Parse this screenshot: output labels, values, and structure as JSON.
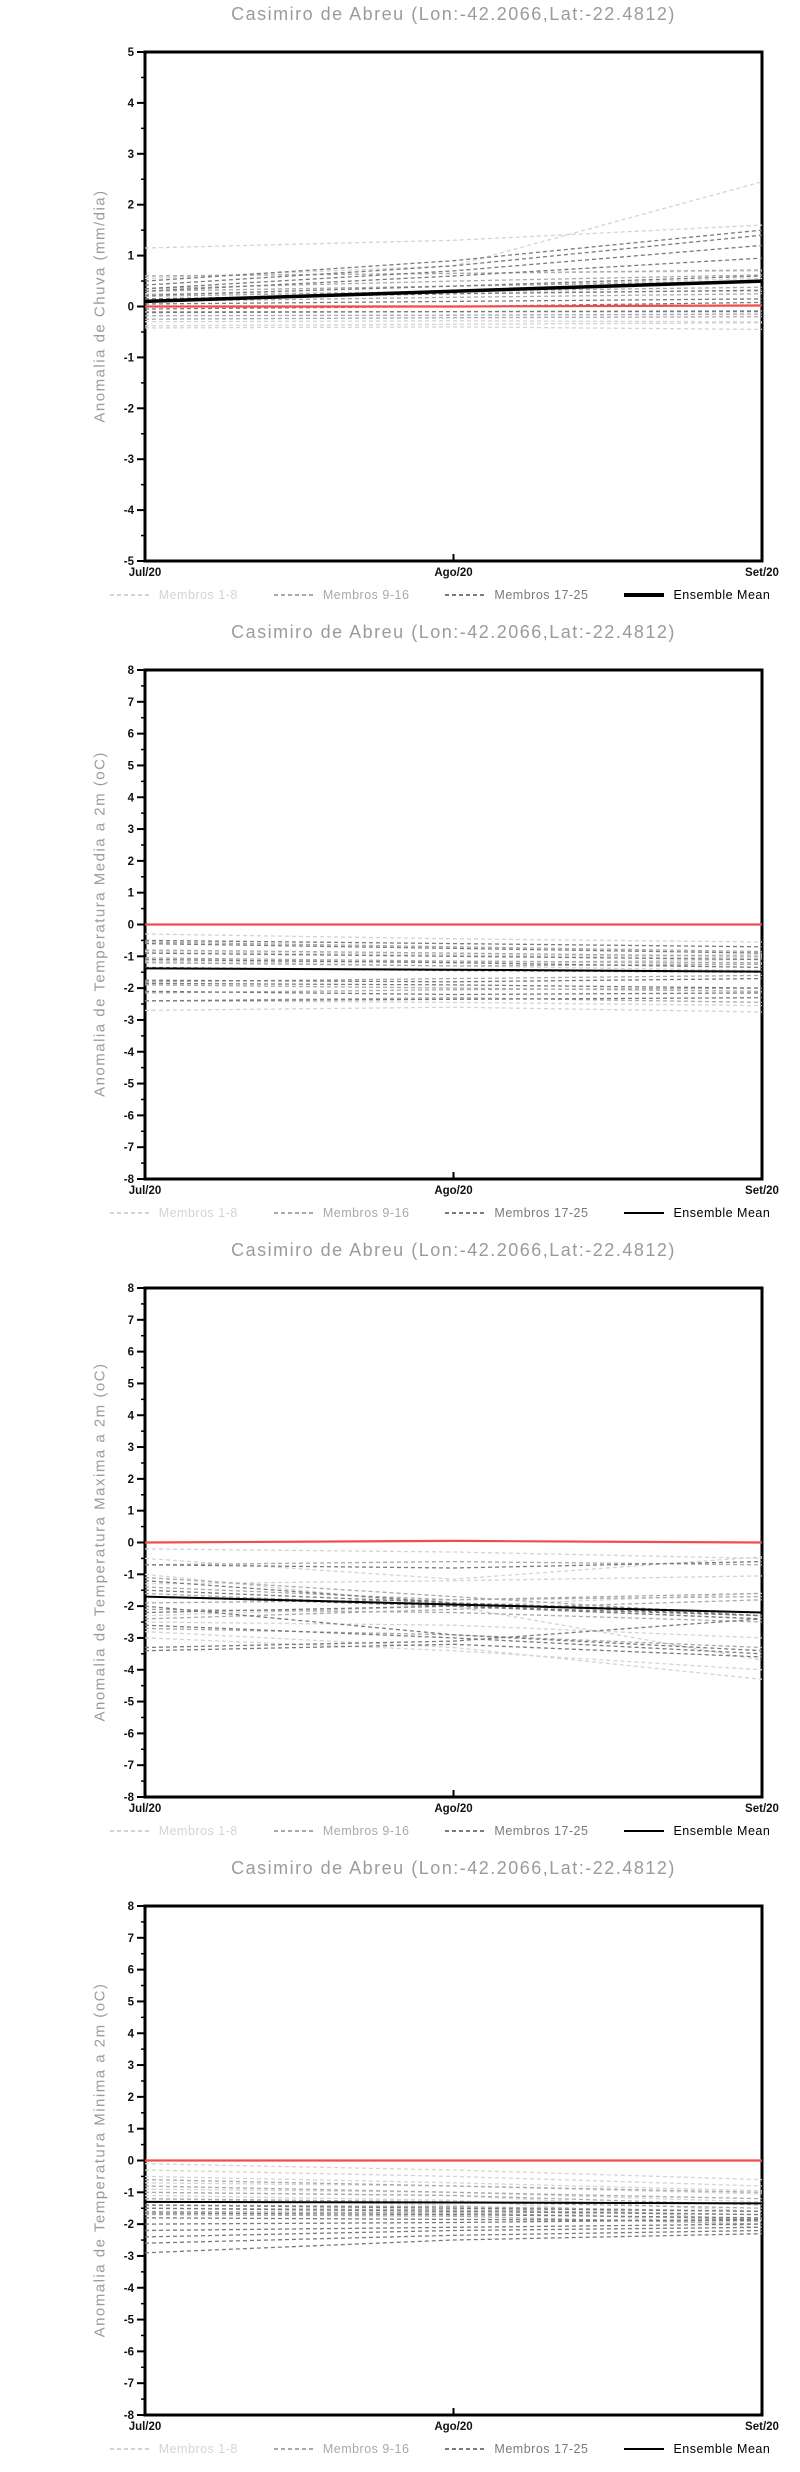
{
  "location": {
    "name": "Casimiro de Abreu",
    "lon": "-42.2066",
    "lat": "-22.4812"
  },
  "colors": {
    "members_1_8": "#d4d4d4",
    "members_9_16": "#a9a9a9",
    "members_17_25": "#7a7a7a",
    "ensemble_mean": "#000000",
    "reference_line": "#f14c4c",
    "title_text": "#9b9b9b",
    "axis_text": "#111111"
  },
  "chart_data": [
    {
      "type": "line",
      "title": "Casimiro de Abreu (Lon:-42.2066,Lat:-22.4812)",
      "ylabel": "Anomalia de Chuva (mm/dia)",
      "ylim": [
        -5,
        5
      ],
      "ytick_step": 1,
      "grid": false,
      "legend_position": "bottom",
      "x_labels": [
        "Jul/20",
        "Ago/20",
        "Set/20"
      ],
      "mean_line_width": 3.5,
      "series": [
        {
          "name": "Membros 1-8",
          "color": "#d4d4d4",
          "style": "dashed",
          "in_legend": true,
          "lines": [
            [
              1.15,
              1.3,
              1.6
            ],
            [
              0.55,
              0.8,
              2.45
            ],
            [
              0.6,
              0.65,
              0.7
            ],
            [
              0.3,
              0.4,
              0.55
            ],
            [
              -0.3,
              -0.28,
              -0.3
            ],
            [
              -0.38,
              -0.35,
              -0.32
            ],
            [
              -0.42,
              -0.4,
              -0.45
            ],
            [
              0.25,
              0.28,
              0.3
            ]
          ]
        },
        {
          "name": "Membros 9-16",
          "color": "#a9a9a9",
          "style": "dashed",
          "in_legend": true,
          "lines": [
            [
              0.6,
              0.65,
              0.72
            ],
            [
              0.35,
              0.5,
              0.62
            ],
            [
              0.3,
              0.4,
              0.5
            ],
            [
              0.2,
              0.3,
              0.38
            ],
            [
              0.1,
              0.18,
              0.25
            ],
            [
              -0.1,
              -0.1,
              -0.08
            ],
            [
              -0.18,
              -0.17,
              -0.15
            ],
            [
              -0.25,
              -0.22,
              -0.2
            ]
          ]
        },
        {
          "name": "Membros 17-25",
          "color": "#7a7a7a",
          "style": "dashed",
          "in_legend": true,
          "lines": [
            [
              0.5,
              0.9,
              1.5
            ],
            [
              0.42,
              0.8,
              1.4
            ],
            [
              0.35,
              0.7,
              1.2
            ],
            [
              0.3,
              0.6,
              0.95
            ],
            [
              0.22,
              0.4,
              0.6
            ],
            [
              0.15,
              0.25,
              0.32
            ],
            [
              0.05,
              0.1,
              0.15
            ],
            [
              -0.05,
              0.0,
              0.08
            ],
            [
              -0.12,
              -0.1,
              -0.1
            ]
          ]
        },
        {
          "name": "Ensemble Mean",
          "color": "#000000",
          "style": "solid",
          "in_legend": true,
          "lines": [
            [
              0.1,
              0.3,
              0.5
            ]
          ]
        },
        {
          "name": "Zero reference",
          "color": "#f14c4c",
          "style": "solid",
          "in_legend": false,
          "lines": [
            [
              0.0,
              0.0,
              0.02
            ]
          ]
        }
      ]
    },
    {
      "type": "line",
      "title": "Casimiro de Abreu (Lon:-42.2066,Lat:-22.4812)",
      "ylabel": "Anomalia de Temperatura Media a 2m (oC)",
      "ylim": [
        -8,
        8
      ],
      "ytick_step": 1,
      "grid": false,
      "legend_position": "bottom",
      "x_labels": [
        "Jul/20",
        "Ago/20",
        "Set/20"
      ],
      "mean_line_width": 2,
      "series": [
        {
          "name": "Membros 1-8",
          "color": "#d4d4d4",
          "style": "dashed",
          "in_legend": true,
          "lines": [
            [
              -0.3,
              -0.45,
              -0.55
            ],
            [
              -0.9,
              -1.0,
              -0.95
            ],
            [
              -1.1,
              -1.2,
              -1.1
            ],
            [
              -1.2,
              -1.15,
              -1.25
            ],
            [
              -2.4,
              -2.45,
              -2.55
            ],
            [
              -2.7,
              -2.6,
              -2.75
            ],
            [
              -1.15,
              -1.3,
              -1.45
            ],
            [
              -0.85,
              -0.95,
              -1.05
            ]
          ]
        },
        {
          "name": "Membros 9-16",
          "color": "#a9a9a9",
          "style": "dashed",
          "in_legend": true,
          "lines": [
            [
              -0.55,
              -0.7,
              -0.85
            ],
            [
              -0.8,
              -0.9,
              -1.0
            ],
            [
              -1.05,
              -1.15,
              -1.2
            ],
            [
              -1.2,
              -1.3,
              -1.25
            ],
            [
              -1.8,
              -1.7,
              -1.6
            ],
            [
              -1.9,
              -2.0,
              -2.1
            ],
            [
              -2.15,
              -2.05,
              -2.0
            ],
            [
              -2.4,
              -2.3,
              -2.45
            ]
          ]
        },
        {
          "name": "Membros 17-25",
          "color": "#7a7a7a",
          "style": "dashed",
          "in_legend": true,
          "lines": [
            [
              -0.5,
              -0.6,
              -0.7
            ],
            [
              -0.6,
              -0.75,
              -0.9
            ],
            [
              -0.9,
              -1.0,
              -1.1
            ],
            [
              -1.1,
              -1.2,
              -1.35
            ],
            [
              -1.35,
              -1.45,
              -1.5
            ],
            [
              -1.75,
              -1.8,
              -1.7
            ],
            [
              -1.85,
              -1.9,
              -2.0
            ],
            [
              -2.1,
              -2.2,
              -2.15
            ],
            [
              -2.4,
              -2.35,
              -2.3
            ]
          ]
        },
        {
          "name": "Ensemble Mean",
          "color": "#000000",
          "style": "solid",
          "in_legend": true,
          "lines": [
            [
              -1.38,
              -1.42,
              -1.48
            ]
          ]
        },
        {
          "name": "Zero reference",
          "color": "#f14c4c",
          "style": "solid",
          "in_legend": false,
          "lines": [
            [
              0.0,
              0.0,
              0.0
            ]
          ]
        }
      ]
    },
    {
      "type": "line",
      "title": "Casimiro de Abreu (Lon:-42.2066,Lat:-22.4812)",
      "ylabel": "Anomalia de Temperatura Maxima a 2m (oC)",
      "ylim": [
        -8,
        8
      ],
      "ytick_step": 1,
      "grid": false,
      "legend_position": "bottom",
      "x_labels": [
        "Jul/20",
        "Ago/20",
        "Set/20"
      ],
      "mean_line_width": 2,
      "series": [
        {
          "name": "Membros 1-8",
          "color": "#d4d4d4",
          "style": "dashed",
          "in_legend": true,
          "lines": [
            [
              -0.2,
              -0.3,
              -0.5
            ],
            [
              -0.5,
              -1.15,
              -0.45
            ],
            [
              -1.0,
              -2.0,
              -3.7
            ],
            [
              -1.3,
              -1.2,
              -1.05
            ],
            [
              -2.3,
              -2.0,
              -1.6
            ],
            [
              -2.5,
              -2.6,
              -3.0
            ],
            [
              -2.8,
              -3.3,
              -4.3
            ],
            [
              -3.0,
              -3.4,
              -4.0
            ]
          ]
        },
        {
          "name": "Membros 9-16",
          "color": "#a9a9a9",
          "style": "dashed",
          "in_legend": true,
          "lines": [
            [
              -0.7,
              -0.6,
              -0.7
            ],
            [
              -1.1,
              -1.7,
              -2.3
            ],
            [
              -1.4,
              -1.8,
              -1.7
            ],
            [
              -1.6,
              -2.0,
              -2.4
            ],
            [
              -1.9,
              -1.8,
              -1.6
            ],
            [
              -2.1,
              -2.2,
              -2.5
            ],
            [
              -2.4,
              -2.1,
              -1.8
            ],
            [
              -2.7,
              -2.9,
              -3.3
            ]
          ]
        },
        {
          "name": "Membros 17-25",
          "color": "#7a7a7a",
          "style": "dashed",
          "in_legend": true,
          "lines": [
            [
              -0.7,
              -0.8,
              -0.6
            ],
            [
              -1.2,
              -1.9,
              -2.3
            ],
            [
              -1.5,
              -1.9,
              -2.2
            ],
            [
              -1.7,
              -2.0,
              -2.4
            ],
            [
              -2.0,
              -2.9,
              -3.4
            ],
            [
              -2.2,
              -2.0,
              -2.3
            ],
            [
              -2.6,
              -3.0,
              -3.5
            ],
            [
              -3.3,
              -3.1,
              -2.4
            ],
            [
              -3.4,
              -3.2,
              -3.6
            ]
          ]
        },
        {
          "name": "Ensemble Mean",
          "color": "#000000",
          "style": "solid",
          "in_legend": true,
          "lines": [
            [
              -1.7,
              -1.95,
              -2.2
            ]
          ]
        },
        {
          "name": "Zero reference",
          "color": "#f14c4c",
          "style": "solid",
          "in_legend": false,
          "lines": [
            [
              0.0,
              0.05,
              0.0
            ]
          ]
        }
      ]
    },
    {
      "type": "line",
      "title": "Casimiro de Abreu (Lon:-42.2066,Lat:-22.4812)",
      "ylabel": "Anomalia de Temperatura Minima a 2m (oC)",
      "ylim": [
        -8,
        8
      ],
      "ytick_step": 1,
      "grid": false,
      "legend_position": "bottom",
      "x_labels": [
        "Jul/20",
        "Ago/20",
        "Set/20"
      ],
      "mean_line_width": 2,
      "series": [
        {
          "name": "Membros 1-8",
          "color": "#d4d4d4",
          "style": "dashed",
          "in_legend": true,
          "lines": [
            [
              -0.1,
              -0.3,
              -0.6
            ],
            [
              -0.3,
              -0.5,
              -0.8
            ],
            [
              -0.5,
              -0.7,
              -0.95
            ],
            [
              -0.7,
              -0.8,
              -1.05
            ],
            [
              -0.9,
              -1.0,
              -1.3
            ],
            [
              -1.0,
              -1.1,
              -1.6
            ],
            [
              -1.1,
              -1.25,
              -1.9
            ],
            [
              -1.2,
              -1.4,
              -2.1
            ]
          ]
        },
        {
          "name": "Membros 9-16",
          "color": "#a9a9a9",
          "style": "dashed",
          "in_legend": true,
          "lines": [
            [
              -0.6,
              -0.8,
              -1.0
            ],
            [
              -0.8,
              -1.0,
              -1.2
            ],
            [
              -1.0,
              -1.1,
              -1.4
            ],
            [
              -1.2,
              -1.3,
              -1.5
            ],
            [
              -1.4,
              -1.45,
              -1.6
            ],
            [
              -1.5,
              -1.55,
              -1.7
            ],
            [
              -1.6,
              -1.65,
              -1.85
            ],
            [
              -1.7,
              -1.75,
              -2.0
            ]
          ]
        },
        {
          "name": "Membros 17-25",
          "color": "#7a7a7a",
          "style": "dashed",
          "in_legend": true,
          "lines": [
            [
              -1.4,
              -1.5,
              -1.6
            ],
            [
              -1.5,
              -1.6,
              -1.7
            ],
            [
              -1.65,
              -1.7,
              -1.8
            ],
            [
              -1.8,
              -1.85,
              -1.9
            ],
            [
              -2.0,
              -1.95,
              -1.85
            ],
            [
              -2.2,
              -2.1,
              -2.0
            ],
            [
              -2.4,
              -2.2,
              -2.1
            ],
            [
              -2.6,
              -2.35,
              -2.2
            ],
            [
              -2.9,
              -2.5,
              -2.3
            ]
          ]
        },
        {
          "name": "Ensemble Mean",
          "color": "#000000",
          "style": "solid",
          "in_legend": true,
          "lines": [
            [
              -1.3,
              -1.32,
              -1.35
            ]
          ]
        },
        {
          "name": "Zero reference",
          "color": "#f14c4c",
          "style": "solid",
          "in_legend": false,
          "lines": [
            [
              0.0,
              0.0,
              0.0
            ]
          ]
        }
      ]
    }
  ]
}
